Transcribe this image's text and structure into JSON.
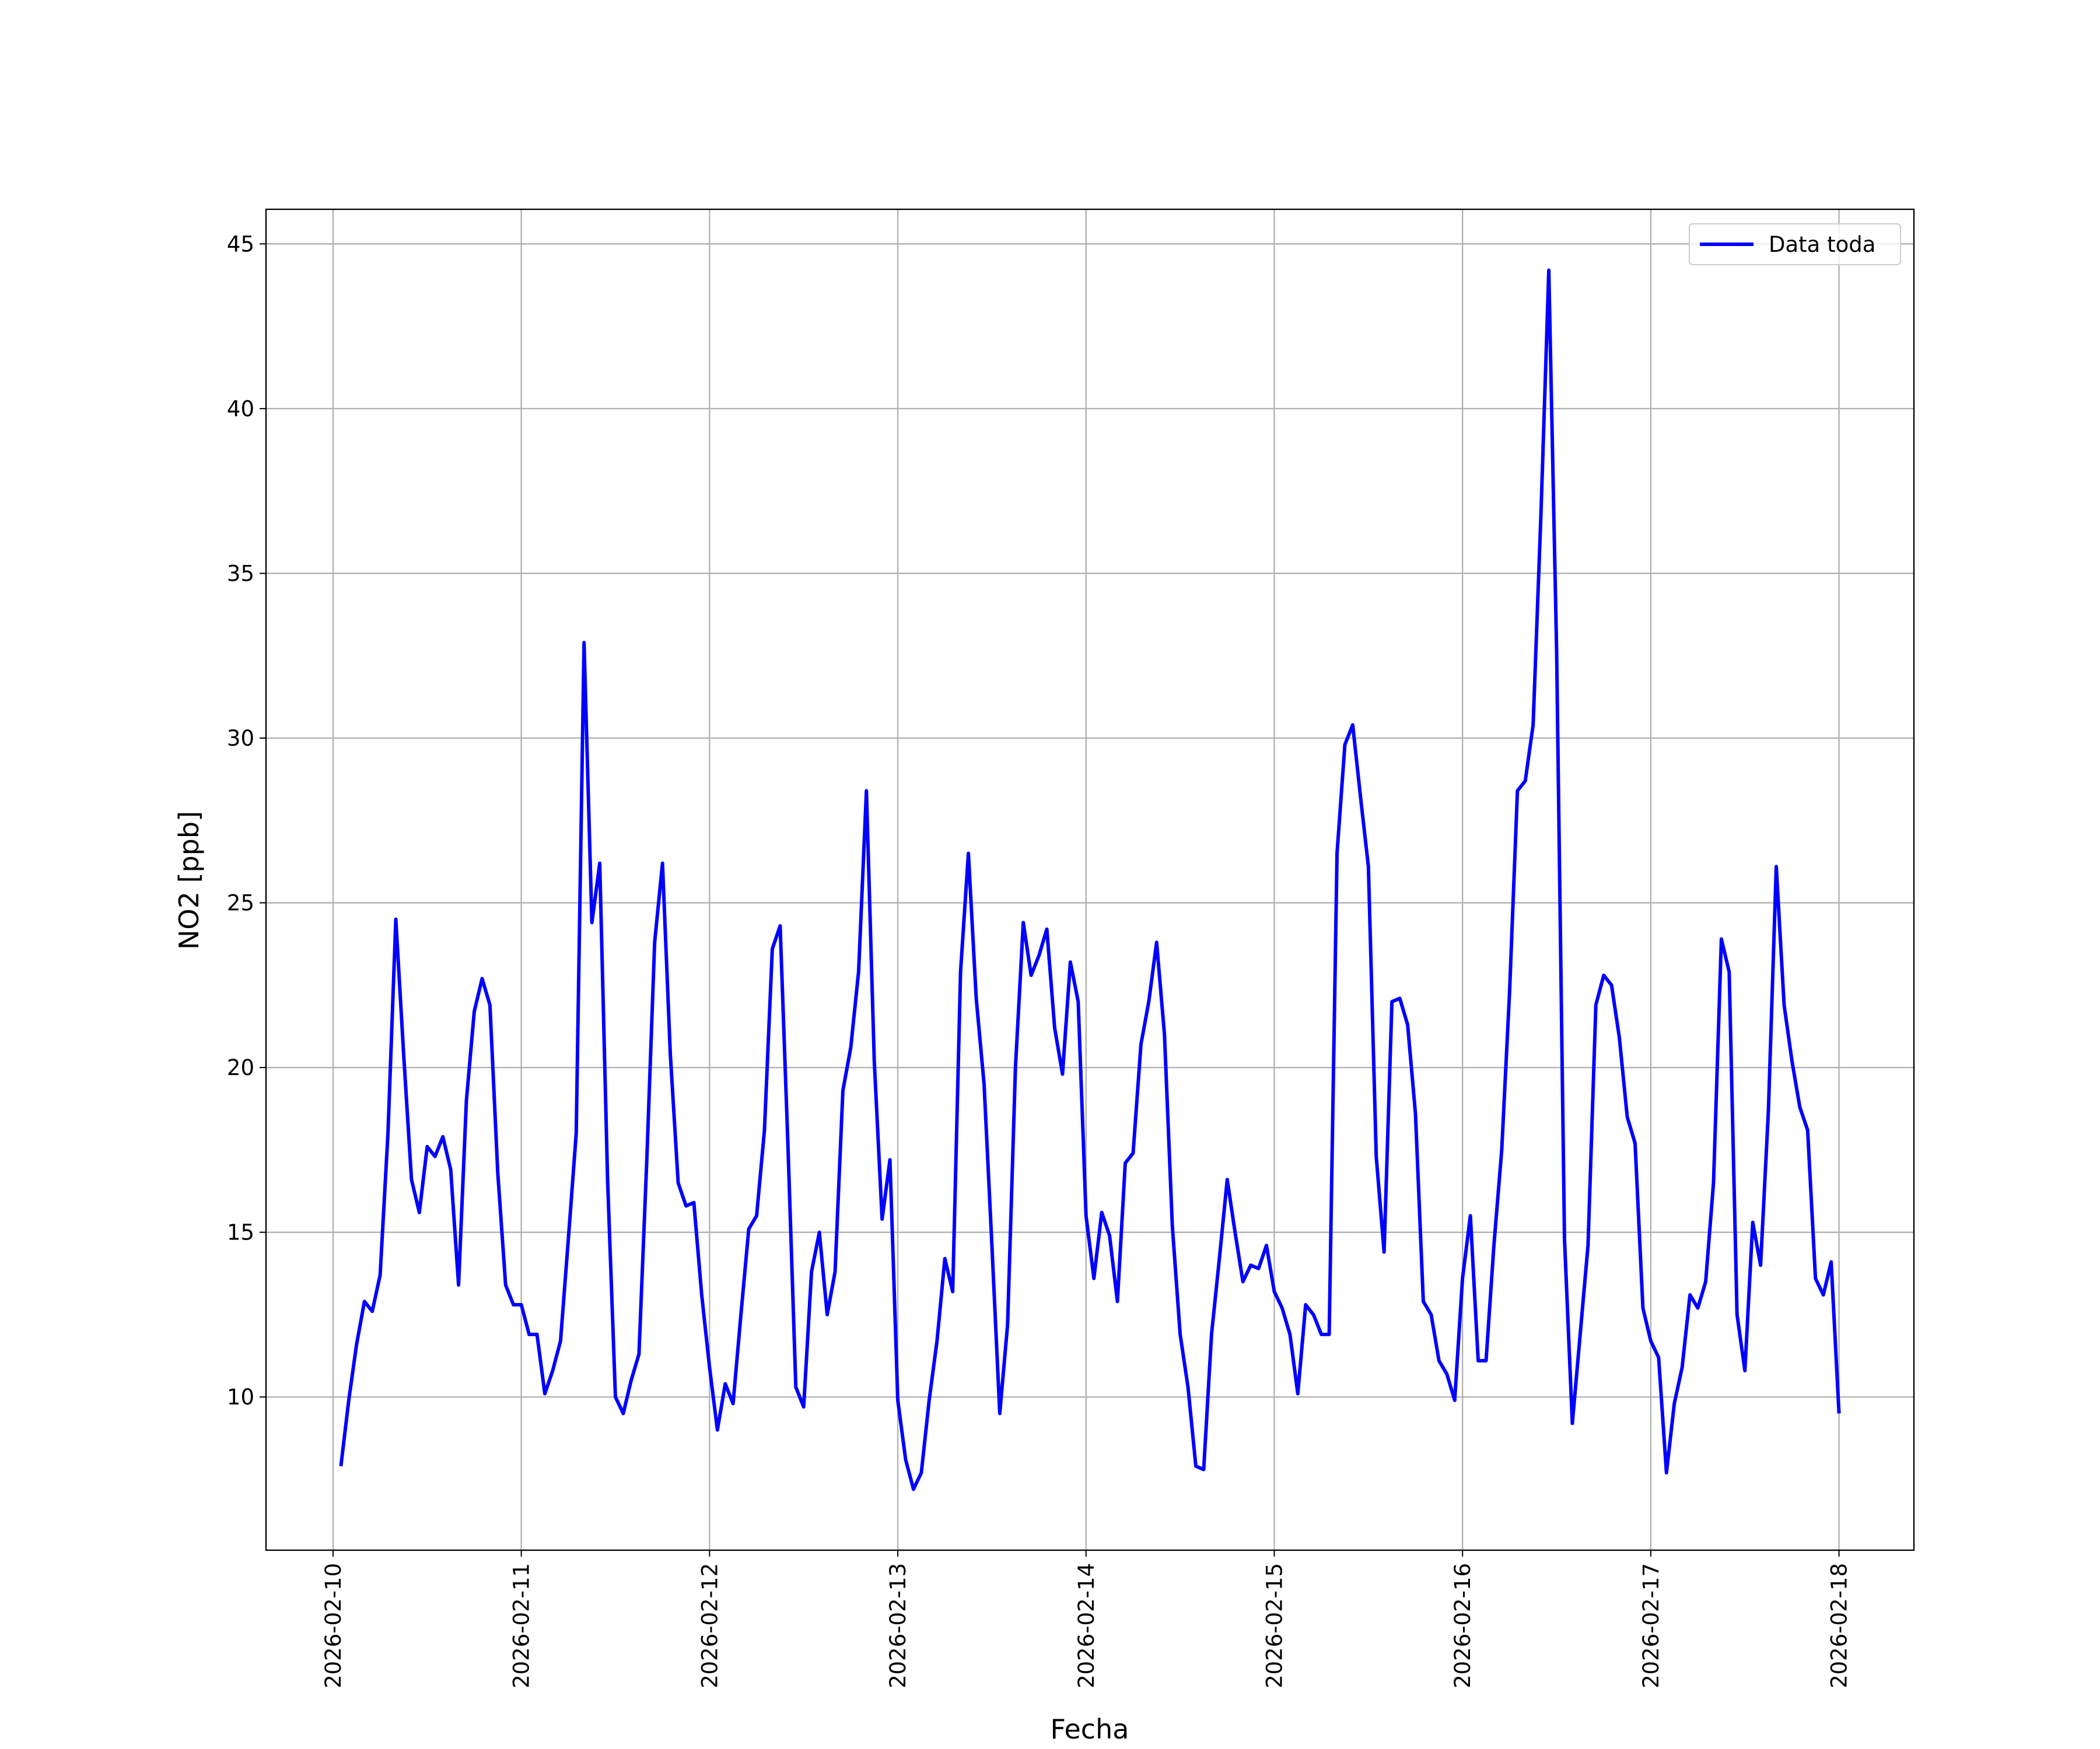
{
  "chart_data": {
    "type": "line",
    "xlabel": "Fecha",
    "ylabel": "NO2 [ppb]",
    "x": [
      "2026-02-10 01:00",
      "2026-02-10 02:00",
      "2026-02-10 03:00",
      "2026-02-10 04:00",
      "2026-02-10 05:00",
      "2026-02-10 06:00",
      "2026-02-10 07:00",
      "2026-02-10 08:00",
      "2026-02-10 09:00",
      "2026-02-10 10:00",
      "2026-02-10 11:00",
      "2026-02-10 12:00",
      "2026-02-10 13:00",
      "2026-02-10 14:00",
      "2026-02-10 15:00",
      "2026-02-10 16:00",
      "2026-02-10 17:00",
      "2026-02-10 18:00",
      "2026-02-10 19:00",
      "2026-02-10 20:00",
      "2026-02-10 21:00",
      "2026-02-10 22:00",
      "2026-02-10 23:00",
      "2026-02-11 00:00",
      "2026-02-11 01:00",
      "2026-02-11 02:00",
      "2026-02-11 03:00",
      "2026-02-11 04:00",
      "2026-02-11 05:00",
      "2026-02-11 06:00",
      "2026-02-11 07:00",
      "2026-02-11 08:00",
      "2026-02-11 09:00",
      "2026-02-11 10:00",
      "2026-02-11 11:00",
      "2026-02-11 12:00",
      "2026-02-11 13:00",
      "2026-02-11 14:00",
      "2026-02-11 15:00",
      "2026-02-11 16:00",
      "2026-02-11 17:00",
      "2026-02-11 18:00",
      "2026-02-11 19:00",
      "2026-02-11 20:00",
      "2026-02-11 21:00",
      "2026-02-11 22:00",
      "2026-02-11 23:00",
      "2026-02-12 00:00",
      "2026-02-12 01:00",
      "2026-02-12 02:00",
      "2026-02-12 03:00",
      "2026-02-12 04:00",
      "2026-02-12 05:00",
      "2026-02-12 06:00",
      "2026-02-12 07:00",
      "2026-02-12 08:00",
      "2026-02-12 09:00",
      "2026-02-12 10:00",
      "2026-02-12 11:00",
      "2026-02-12 12:00",
      "2026-02-12 13:00",
      "2026-02-12 14:00",
      "2026-02-12 15:00",
      "2026-02-12 16:00",
      "2026-02-12 17:00",
      "2026-02-12 18:00",
      "2026-02-12 19:00",
      "2026-02-12 20:00",
      "2026-02-12 21:00",
      "2026-02-12 22:00",
      "2026-02-12 23:00",
      "2026-02-13 00:00",
      "2026-02-13 01:00",
      "2026-02-13 02:00",
      "2026-02-13 03:00",
      "2026-02-13 04:00",
      "2026-02-13 05:00",
      "2026-02-13 06:00",
      "2026-02-13 07:00",
      "2026-02-13 08:00",
      "2026-02-13 09:00",
      "2026-02-13 10:00",
      "2026-02-13 11:00",
      "2026-02-13 12:00",
      "2026-02-13 13:00",
      "2026-02-13 14:00",
      "2026-02-13 15:00",
      "2026-02-13 16:00",
      "2026-02-13 17:00",
      "2026-02-13 18:00",
      "2026-02-13 19:00",
      "2026-02-13 20:00",
      "2026-02-13 21:00",
      "2026-02-13 22:00",
      "2026-02-13 23:00",
      "2026-02-14 00:00",
      "2026-02-14 01:00",
      "2026-02-14 02:00",
      "2026-02-14 03:00",
      "2026-02-14 04:00",
      "2026-02-14 05:00",
      "2026-02-14 06:00",
      "2026-02-14 07:00",
      "2026-02-14 08:00",
      "2026-02-14 09:00",
      "2026-02-14 10:00",
      "2026-02-14 11:00",
      "2026-02-14 12:00",
      "2026-02-14 13:00",
      "2026-02-14 14:00",
      "2026-02-14 15:00",
      "2026-02-14 16:00",
      "2026-02-14 17:00",
      "2026-02-14 18:00",
      "2026-02-14 19:00",
      "2026-02-14 20:00",
      "2026-02-14 21:00",
      "2026-02-14 22:00",
      "2026-02-14 23:00",
      "2026-02-15 00:00",
      "2026-02-15 01:00",
      "2026-02-15 02:00",
      "2026-02-15 03:00",
      "2026-02-15 04:00",
      "2026-02-15 05:00",
      "2026-02-15 06:00",
      "2026-02-15 07:00",
      "2026-02-15 08:00",
      "2026-02-15 09:00",
      "2026-02-15 10:00",
      "2026-02-15 11:00",
      "2026-02-15 12:00",
      "2026-02-15 13:00",
      "2026-02-15 14:00",
      "2026-02-15 15:00",
      "2026-02-15 16:00",
      "2026-02-15 17:00",
      "2026-02-15 18:00",
      "2026-02-15 19:00",
      "2026-02-15 20:00",
      "2026-02-15 21:00",
      "2026-02-15 22:00",
      "2026-02-15 23:00",
      "2026-02-16 00:00",
      "2026-02-16 01:00",
      "2026-02-16 02:00",
      "2026-02-16 03:00",
      "2026-02-16 04:00",
      "2026-02-16 05:00",
      "2026-02-16 06:00",
      "2026-02-16 07:00",
      "2026-02-16 08:00",
      "2026-02-16 09:00",
      "2026-02-16 10:00",
      "2026-02-16 11:00",
      "2026-02-16 12:00",
      "2026-02-16 13:00",
      "2026-02-16 14:00",
      "2026-02-16 15:00",
      "2026-02-16 16:00",
      "2026-02-16 17:00",
      "2026-02-16 18:00",
      "2026-02-16 19:00",
      "2026-02-16 20:00",
      "2026-02-16 21:00",
      "2026-02-16 22:00",
      "2026-02-16 23:00",
      "2026-02-17 00:00",
      "2026-02-17 01:00",
      "2026-02-17 02:00",
      "2026-02-17 03:00",
      "2026-02-17 04:00",
      "2026-02-17 05:00",
      "2026-02-17 06:00",
      "2026-02-17 07:00",
      "2026-02-17 08:00",
      "2026-02-17 09:00",
      "2026-02-17 10:00",
      "2026-02-17 11:00",
      "2026-02-17 12:00",
      "2026-02-17 13:00",
      "2026-02-17 14:00",
      "2026-02-17 15:00",
      "2026-02-17 16:00",
      "2026-02-17 17:00",
      "2026-02-17 18:00",
      "2026-02-17 19:00",
      "2026-02-17 20:00",
      "2026-02-17 21:00",
      "2026-02-17 22:00",
      "2026-02-17 23:00",
      "2026-02-18 00:00"
    ],
    "series": [
      {
        "name": "Data toda",
        "color": "#0000ff",
        "values": [
          7.9,
          9.9,
          11.6,
          12.9,
          12.6,
          13.7,
          18.0,
          24.5,
          20.4,
          16.6,
          15.6,
          17.6,
          17.3,
          17.9,
          16.9,
          13.4,
          19.0,
          21.7,
          22.7,
          21.9,
          16.8,
          13.4,
          12.8,
          12.8,
          11.9,
          11.9,
          10.1,
          10.8,
          11.7,
          14.8,
          18.0,
          32.9,
          24.4,
          26.2,
          16.6,
          10.0,
          9.5,
          10.5,
          11.3,
          17.2,
          23.8,
          26.2,
          20.4,
          16.5,
          15.8,
          15.9,
          13.1,
          10.9,
          9.0,
          10.4,
          9.8,
          12.5,
          15.1,
          15.5,
          18.1,
          23.6,
          24.3,
          17.6,
          10.3,
          9.7,
          13.8,
          15.0,
          12.5,
          13.8,
          19.3,
          20.6,
          22.9,
          28.4,
          20.2,
          15.4,
          17.2,
          9.9,
          8.1,
          7.2,
          7.7,
          9.9,
          11.7,
          14.2,
          13.2,
          22.9,
          26.5,
          22.1,
          19.5,
          14.6,
          9.5,
          12.2,
          20.0,
          24.4,
          22.8,
          23.4,
          24.2,
          21.2,
          19.8,
          23.2,
          22.0,
          15.5,
          13.6,
          15.6,
          14.9,
          12.9,
          17.1,
          17.4,
          20.7,
          22.0,
          23.8,
          21.0,
          15.2,
          11.9,
          10.3,
          7.9,
          7.8,
          11.9,
          14.2,
          16.6,
          15.0,
          13.5,
          14.0,
          13.9,
          14.6,
          13.2,
          12.7,
          11.9,
          10.1,
          12.8,
          12.5,
          11.9,
          11.9,
          26.5,
          29.8,
          30.4,
          28.2,
          26.1,
          17.3,
          14.4,
          22.0,
          22.1,
          21.3,
          18.6,
          12.9,
          12.5,
          11.1,
          10.7,
          9.9,
          13.6,
          15.5,
          11.1,
          11.1,
          14.6,
          17.5,
          22.3,
          28.4,
          28.7,
          30.4,
          36.8,
          44.2,
          32.6,
          14.8,
          9.2,
          11.9,
          14.6,
          21.9,
          22.8,
          22.5,
          20.9,
          18.5,
          17.7,
          12.7,
          11.7,
          11.2,
          7.7,
          9.8,
          10.9,
          13.1,
          12.7,
          13.5,
          16.5,
          23.9,
          22.9,
          12.5,
          10.8,
          15.3,
          14.0,
          18.7,
          26.1,
          21.9,
          20.2,
          18.8,
          18.1,
          13.6,
          13.1,
          14.1,
          9.5
        ]
      }
    ],
    "xlim": [
      "2026-02-09 15:27",
      "2026-02-18 09:33"
    ],
    "xticks": [
      "2026-02-10",
      "2026-02-11",
      "2026-02-12",
      "2026-02-13",
      "2026-02-14",
      "2026-02-15",
      "2026-02-16",
      "2026-02-17",
      "2026-02-18"
    ],
    "ylim": [
      5.35,
      46.05
    ],
    "yticks": [
      10,
      15,
      20,
      25,
      30,
      35,
      40,
      45
    ],
    "grid": true,
    "legend": "upper right"
  }
}
